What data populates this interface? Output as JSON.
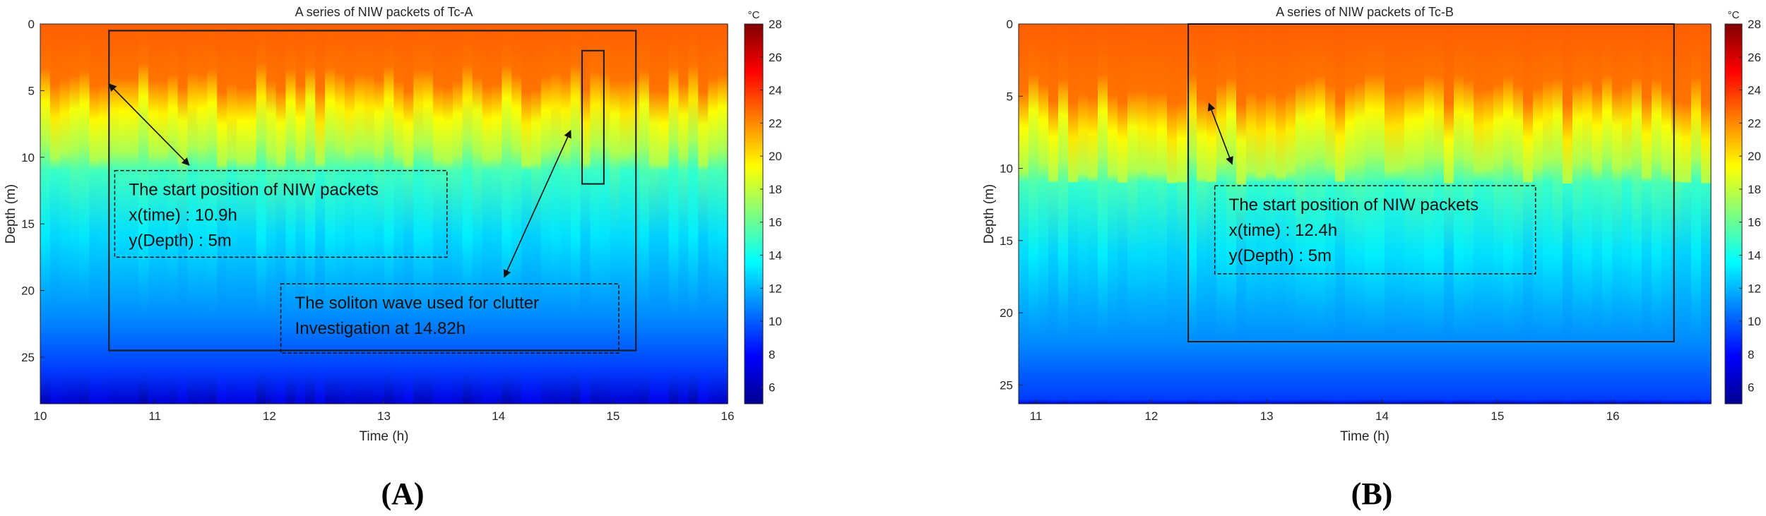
{
  "panels": {
    "left": "(A)",
    "right": "(B)"
  },
  "chart_data": [
    {
      "type": "heatmap",
      "title": "A series of NIW packets of Tc-A",
      "xlabel": "Time (h)",
      "ylabel": "Depth (m)",
      "xlim": [
        10,
        16
      ],
      "ylim": [
        28.5,
        0
      ],
      "y_reversed": true,
      "xticks": [
        10,
        11,
        12,
        13,
        14,
        15,
        16
      ],
      "yticks": [
        0,
        5,
        10,
        15,
        20,
        25
      ],
      "colorbar": {
        "unit": "°C",
        "range": [
          5,
          28
        ],
        "ticks": [
          6,
          8,
          10,
          12,
          14,
          16,
          18,
          20,
          22,
          24,
          26,
          28
        ],
        "colormap": "jet"
      },
      "field": {
        "surface_temp": 23,
        "thermocline_depth": 6.5,
        "bottom_temp": 6
      },
      "regions": [
        {
          "type": "rect",
          "x": [
            10.6,
            15.2
          ],
          "y": [
            0.5,
            24.5
          ]
        },
        {
          "type": "rect",
          "x": [
            14.73,
            14.92
          ],
          "y": [
            2,
            12
          ]
        }
      ],
      "annotations": [
        {
          "lines": [
            "The start position of NIW packets",
            "x(time) : 10.9h",
            "y(Depth) : 5m"
          ],
          "box_x": [
            10.65,
            13.55
          ],
          "box_y": [
            11,
            17.5
          ],
          "arrow_from": [
            10.6,
            4.5
          ],
          "arrow_to": [
            11.3,
            10.6
          ]
        },
        {
          "lines": [
            "The soliton wave used for clutter",
            "Investigation at 14.82h"
          ],
          "box_x": [
            12.1,
            15.05
          ],
          "box_y": [
            19.5,
            24.7
          ],
          "arrow_from": [
            14.63,
            8
          ],
          "arrow_to": [
            14.05,
            19
          ]
        }
      ]
    },
    {
      "type": "heatmap",
      "title": "A series of NIW packets of Tc-B",
      "xlabel": "Time (h)",
      "ylabel": "Depth (m)",
      "xlim": [
        10.85,
        16.85
      ],
      "ylim": [
        26.3,
        0
      ],
      "y_reversed": true,
      "xticks": [
        11,
        12,
        13,
        14,
        15,
        16
      ],
      "yticks": [
        0,
        5,
        10,
        15,
        20,
        25
      ],
      "colorbar": {
        "unit": "°C",
        "range": [
          5,
          28
        ],
        "ticks": [
          6,
          8,
          10,
          12,
          14,
          16,
          18,
          20,
          22,
          24,
          26,
          28
        ],
        "colormap": "jet"
      },
      "field": {
        "surface_temp": 23,
        "thermocline_depth": 7,
        "bottom_temp": 6
      },
      "regions": [
        {
          "type": "rect",
          "x": [
            12.32,
            16.53
          ],
          "y": [
            0,
            22
          ]
        }
      ],
      "annotations": [
        {
          "lines": [
            "The start position of NIW packets",
            "x(time) : 12.4h",
            "y(Depth) : 5m"
          ],
          "box_x": [
            12.55,
            15.33
          ],
          "box_y": [
            11.2,
            17.3
          ],
          "arrow_from": [
            12.5,
            5.5
          ],
          "arrow_to": [
            12.7,
            9.7
          ]
        }
      ]
    }
  ]
}
